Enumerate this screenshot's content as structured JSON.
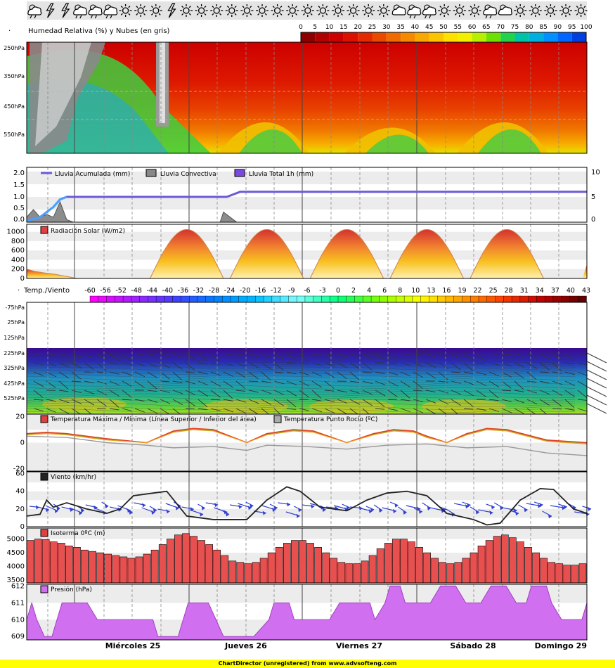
{
  "weather_icons": [
    "partly-cloudy-rain",
    "storm",
    "storm",
    "partly-cloudy-rain",
    "partly-cloudy-rain",
    "partly-cloudy-rain",
    "sun",
    "sun",
    "sun",
    "storm",
    "sun",
    "sun",
    "sun",
    "sun",
    "sun",
    "sun",
    "sun",
    "sun",
    "sun",
    "sun",
    "sun",
    "sun",
    "sun",
    "sun",
    "partly-cloudy",
    "partly-cloudy-rain",
    "partly-cloudy-rain",
    "sun",
    "sun",
    "sun",
    "partly-cloudy-rain",
    "partly-cloudy",
    "sun",
    "sun",
    "sun",
    "sun",
    "sun"
  ],
  "days": [
    "Miércoles 25",
    "Jueves 26",
    "Viernes 27",
    "Sábado 28",
    "Domingo 29"
  ],
  "footer": "ChartDirector (unregistered) from www.advsofteng.com",
  "chart_data": [
    {
      "id": "humidity",
      "type": "heatmap",
      "title": "Humedad Relativa (%) y Nubes (en gris)",
      "y_ticks": [
        "250hPa",
        "350hPa",
        "450hPa",
        "550hPa"
      ],
      "scale": [
        0,
        5,
        10,
        15,
        20,
        25,
        30,
        35,
        40,
        45,
        50,
        55,
        60,
        65,
        70,
        75,
        80,
        85,
        90,
        95,
        100
      ],
      "scale_colors": [
        "#8c0000",
        "#b00000",
        "#cc0000",
        "#dd1000",
        "#e42a00",
        "#ea4a00",
        "#ef6b00",
        "#f48a00",
        "#f8a800",
        "#fcc400",
        "#ffe000",
        "#f0f000",
        "#b8ee00",
        "#6ee000",
        "#22d24a",
        "#00c2a8",
        "#00aee0",
        "#0090ff",
        "#0066ff",
        "#0040e0",
        "#0020b0"
      ]
    },
    {
      "id": "rain",
      "type": "area",
      "series": [
        {
          "name": "Lluvia Acumulada (mm)"
        },
        {
          "name": "Lluvia Convectiva"
        },
        {
          "name": "Lluvia Total 1h (mm)"
        }
      ],
      "y_ticks": [
        "2.0",
        "1.5",
        "1.0",
        "0.5",
        "0.0"
      ],
      "y2_ticks": [
        "10",
        "5",
        "0"
      ],
      "ylim": [
        0,
        2
      ],
      "y2lim": [
        0,
        10
      ],
      "accumulated": [
        [
          0,
          0.05
        ],
        [
          4,
          0.2
        ],
        [
          8,
          0.6
        ],
        [
          10,
          0.9
        ],
        [
          12,
          1.0
        ],
        [
          60,
          1.0
        ],
        [
          64,
          1.2
        ],
        [
          168,
          1.2
        ]
      ],
      "convective": [
        [
          0,
          0.2
        ],
        [
          2,
          0.5
        ],
        [
          4,
          0.2
        ],
        [
          6,
          0.3
        ],
        [
          8,
          0.2
        ],
        [
          10,
          0.8
        ],
        [
          12,
          0.1
        ],
        [
          14,
          0
        ],
        [
          58,
          0
        ],
        [
          59,
          0.4
        ],
        [
          61,
          0.2
        ],
        [
          63,
          0
        ]
      ]
    },
    {
      "id": "radiation",
      "type": "area",
      "series": [
        {
          "name": "Radiación Solar (W/m2)"
        }
      ],
      "y_ticks": [
        "1000",
        "800",
        "600",
        "400",
        "200",
        "0"
      ],
      "ylim": [
        0,
        1100
      ],
      "peak": 1050,
      "day_peaks": [
        48,
        72,
        96,
        120,
        144
      ]
    },
    {
      "id": "temperature_profile",
      "type": "heatmap",
      "title": "Temp./Viento",
      "y_ticks": [
        "-75hPa",
        "25hPa",
        "125hPa",
        "225hPa",
        "325hPa",
        "425hPa",
        "525hPa"
      ],
      "scale": [
        -60,
        -56,
        -52,
        -48,
        -44,
        -40,
        -36,
        -32,
        -28,
        -24,
        -20,
        -16,
        -12,
        -9,
        -6,
        -3,
        0,
        2,
        4,
        6,
        8,
        10,
        13,
        16,
        19,
        22,
        25,
        28,
        31,
        34,
        37,
        40,
        43
      ]
    },
    {
      "id": "temperature",
      "type": "line",
      "series": [
        {
          "name": "Temperatura Máxima / Mínima (Línea Superior / Inferior del área)"
        },
        {
          "name": "Temperatura Punto Rocío (ºC)"
        }
      ],
      "y_ticks": [
        "20",
        "0",
        "-20"
      ],
      "ylim": [
        -22,
        22
      ],
      "tmax": [
        [
          0,
          7
        ],
        [
          6,
          8
        ],
        [
          12,
          7
        ],
        [
          24,
          3
        ],
        [
          36,
          0
        ],
        [
          44,
          9
        ],
        [
          50,
          11
        ],
        [
          56,
          10
        ],
        [
          66,
          0
        ],
        [
          72,
          7
        ],
        [
          80,
          10
        ],
        [
          86,
          9
        ],
        [
          96,
          0
        ],
        [
          104,
          7
        ],
        [
          110,
          10
        ],
        [
          116,
          9
        ],
        [
          120,
          5
        ],
        [
          126,
          0
        ],
        [
          132,
          7
        ],
        [
          138,
          11
        ],
        [
          144,
          10
        ],
        [
          156,
          2
        ],
        [
          168,
          0
        ]
      ],
      "tmin": [
        [
          0,
          6
        ],
        [
          6,
          7
        ],
        [
          12,
          6
        ],
        [
          24,
          2
        ],
        [
          36,
          0
        ],
        [
          44,
          8
        ],
        [
          50,
          10
        ],
        [
          56,
          9
        ],
        [
          66,
          0
        ],
        [
          72,
          6
        ],
        [
          80,
          9
        ],
        [
          86,
          8
        ],
        [
          96,
          0
        ],
        [
          104,
          6
        ],
        [
          110,
          9
        ],
        [
          116,
          8
        ],
        [
          120,
          4
        ],
        [
          126,
          0
        ],
        [
          132,
          6
        ],
        [
          138,
          10
        ],
        [
          144,
          9
        ],
        [
          156,
          1
        ],
        [
          168,
          -1
        ]
      ],
      "dew": [
        [
          0,
          5
        ],
        [
          12,
          4
        ],
        [
          24,
          0
        ],
        [
          36,
          -2
        ],
        [
          44,
          -4
        ],
        [
          56,
          -3
        ],
        [
          66,
          -6
        ],
        [
          72,
          -2
        ],
        [
          84,
          -3
        ],
        [
          96,
          -5
        ],
        [
          108,
          -2
        ],
        [
          120,
          -1
        ],
        [
          132,
          -4
        ],
        [
          144,
          -3
        ],
        [
          156,
          -8
        ],
        [
          168,
          -10
        ]
      ]
    },
    {
      "id": "wind",
      "type": "line",
      "series": [
        {
          "name": "Viento (km/hr)"
        }
      ],
      "y_ticks": [
        "60",
        "40",
        "20",
        "0"
      ],
      "ylim": [
        0,
        62
      ],
      "values": [
        [
          0,
          12
        ],
        [
          4,
          14
        ],
        [
          6,
          30
        ],
        [
          8,
          22
        ],
        [
          12,
          27
        ],
        [
          18,
          20
        ],
        [
          24,
          15
        ],
        [
          28,
          20
        ],
        [
          32,
          35
        ],
        [
          38,
          38
        ],
        [
          42,
          40
        ],
        [
          48,
          12
        ],
        [
          56,
          8
        ],
        [
          66,
          8
        ],
        [
          72,
          30
        ],
        [
          78,
          45
        ],
        [
          82,
          40
        ],
        [
          88,
          22
        ],
        [
          96,
          18
        ],
        [
          102,
          30
        ],
        [
          108,
          38
        ],
        [
          114,
          40
        ],
        [
          120,
          35
        ],
        [
          126,
          15
        ],
        [
          134,
          8
        ],
        [
          138,
          2
        ],
        [
          142,
          4
        ],
        [
          148,
          30
        ],
        [
          154,
          43
        ],
        [
          158,
          42
        ],
        [
          164,
          20
        ],
        [
          168,
          15
        ],
        [
          174,
          20
        ],
        [
          180,
          25
        ],
        [
          190,
          30
        ]
      ]
    },
    {
      "id": "freezing_level",
      "type": "bar",
      "series": [
        {
          "name": "Isoterma 0ºC (m)"
        }
      ],
      "y_ticks": [
        "5000",
        "4500",
        "4000",
        "3500"
      ],
      "ylim": [
        3400,
        5400
      ],
      "values": [
        4950,
        5000,
        4980,
        4900,
        4850,
        4750,
        4700,
        4600,
        4550,
        4500,
        4450,
        4400,
        4350,
        4300,
        4350,
        4450,
        4600,
        4800,
        5000,
        5150,
        5200,
        5100,
        4950,
        4800,
        4600,
        4400,
        4200,
        4150,
        4100,
        4150,
        4300,
        4500,
        4700,
        4850,
        4950,
        4950,
        4850,
        4700,
        4500,
        4300,
        4150,
        4100,
        4100,
        4200,
        4400,
        4650,
        4850,
        5000,
        5000,
        4900,
        4700,
        4500,
        4300,
        4150,
        4100,
        4150,
        4300,
        4500,
        4750,
        4950,
        5100,
        5150,
        5050,
        4900,
        4700,
        4500,
        4300,
        4150,
        4100,
        4050,
        4050,
        4100
      ]
    },
    {
      "id": "pressure",
      "type": "area",
      "series": [
        {
          "name": "Presión (hPa)"
        }
      ],
      "y_ticks": [
        "612",
        "611",
        "610",
        "609"
      ],
      "ylim": [
        608.8,
        612.1
      ],
      "values": [
        [
          0,
          610
        ],
        [
          2,
          611
        ],
        [
          4,
          610
        ],
        [
          7,
          609
        ],
        [
          10,
          609
        ],
        [
          14,
          611
        ],
        [
          24,
          611
        ],
        [
          28,
          610
        ],
        [
          50,
          610
        ],
        [
          52,
          609
        ],
        [
          60,
          609
        ],
        [
          64,
          611
        ],
        [
          72,
          611
        ],
        [
          78,
          609
        ],
        [
          90,
          609
        ],
        [
          96,
          610
        ],
        [
          98,
          611
        ],
        [
          104,
          611
        ],
        [
          106,
          610
        ],
        [
          120,
          610
        ],
        [
          124,
          611
        ],
        [
          136,
          611
        ],
        [
          138,
          610
        ],
        [
          142,
          611
        ],
        [
          144,
          612
        ],
        [
          148,
          612
        ],
        [
          150,
          611
        ],
        [
          160,
          611
        ],
        [
          164,
          612
        ],
        [
          170,
          612
        ],
        [
          174,
          611
        ],
        [
          180,
          611
        ],
        [
          184,
          612
        ],
        [
          190,
          612
        ],
        [
          194,
          611
        ],
        [
          198,
          611
        ],
        [
          200,
          612
        ],
        [
          206,
          612
        ],
        [
          208,
          611
        ],
        [
          212,
          610
        ],
        [
          220,
          610
        ],
        [
          222,
          611
        ]
      ]
    }
  ]
}
